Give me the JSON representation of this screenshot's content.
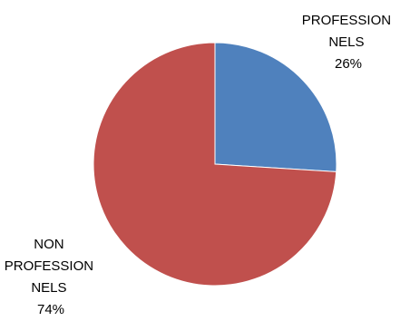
{
  "chart_data": {
    "type": "pie",
    "title": "",
    "slices": [
      {
        "label_lines": [
          "PROFESSION",
          "NELS"
        ],
        "value": 26,
        "value_label": "26%",
        "color": "#4F81BD"
      },
      {
        "label_lines": [
          "NON",
          "PROFESSION",
          "NELS"
        ],
        "value": 74,
        "value_label": "74%",
        "color": "#C0504D"
      }
    ],
    "start_angle_deg": 0,
    "direction": "clockwise",
    "legend": "none"
  }
}
